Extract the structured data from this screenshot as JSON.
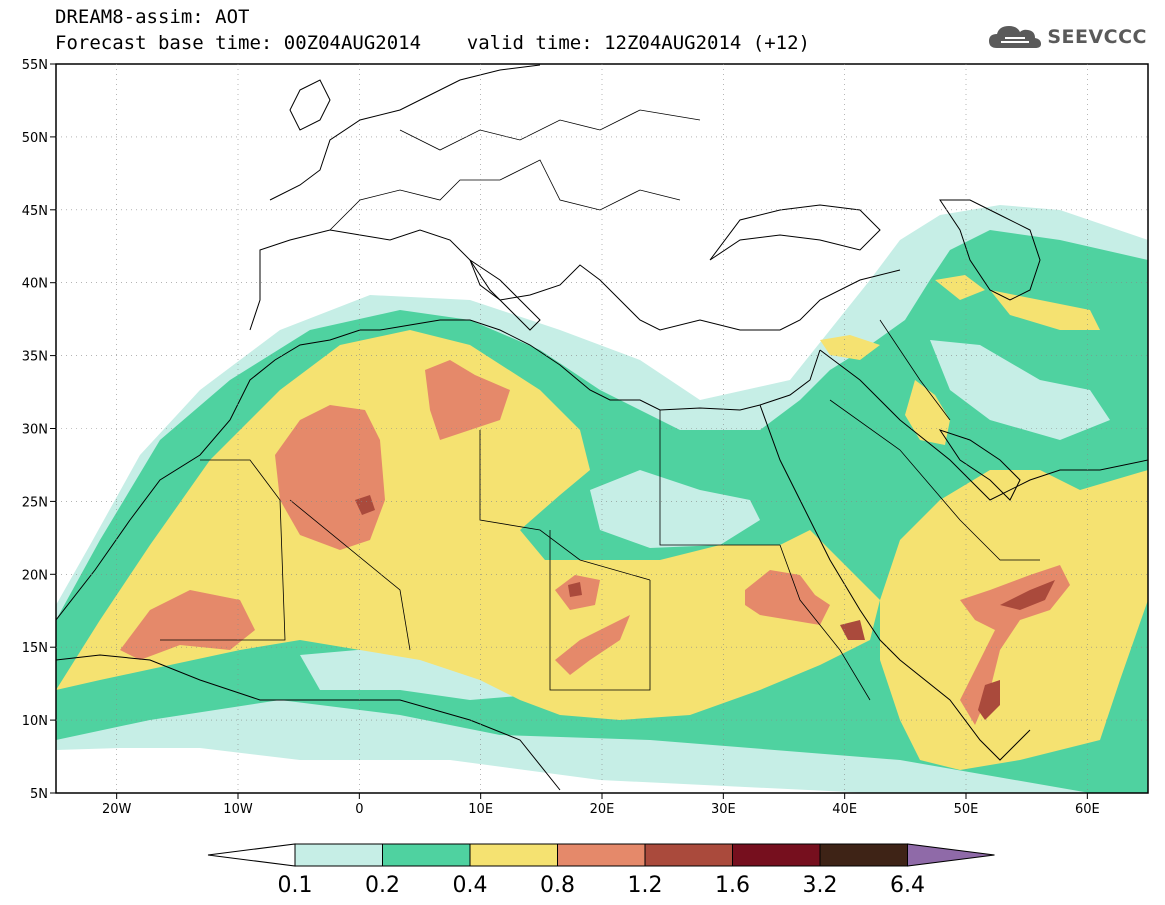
{
  "title": {
    "line1": "DREAM8-assim: AOT",
    "line2": "Forecast base time: 00Z04AUG2014    valid time: 12Z04AUG2014 (+12)"
  },
  "logo": {
    "icon": "cloud-icon",
    "text": "SEEVCCC"
  },
  "map": {
    "lon_range": [
      -25,
      65
    ],
    "lat_range": [
      5,
      55
    ],
    "lat_ticks": [
      {
        "value": 55,
        "label": "55N"
      },
      {
        "value": 50,
        "label": "50N"
      },
      {
        "value": 45,
        "label": "45N"
      },
      {
        "value": 40,
        "label": "40N"
      },
      {
        "value": 35,
        "label": "35N"
      },
      {
        "value": 30,
        "label": "30N"
      },
      {
        "value": 25,
        "label": "25N"
      },
      {
        "value": 20,
        "label": "20N"
      },
      {
        "value": 15,
        "label": "15N"
      },
      {
        "value": 10,
        "label": "10N"
      },
      {
        "value": 5,
        "label": "5N"
      }
    ],
    "lon_ticks": [
      {
        "value": -20,
        "label": "20W"
      },
      {
        "value": -10,
        "label": "10W"
      },
      {
        "value": 0,
        "label": "0"
      },
      {
        "value": 10,
        "label": "10E"
      },
      {
        "value": 20,
        "label": "20E"
      },
      {
        "value": 30,
        "label": "30E"
      },
      {
        "value": 40,
        "label": "40E"
      },
      {
        "value": 50,
        "label": "50E"
      },
      {
        "value": 60,
        "label": "60E"
      }
    ]
  },
  "colorbar": {
    "under_color": "#ffffff",
    "over_color": "#8f6aa8",
    "bins": [
      {
        "color": "#c6eee6"
      },
      {
        "color": "#4fd2a0"
      },
      {
        "color": "#f5e271"
      },
      {
        "color": "#e5896a"
      },
      {
        "color": "#aa4a3c"
      },
      {
        "color": "#760f1e"
      },
      {
        "color": "#3e2316"
      }
    ],
    "labels": [
      "0.1",
      "0.2",
      "0.4",
      "0.8",
      "1.2",
      "1.6",
      "3.2",
      "6.4"
    ]
  },
  "colors": {
    "aot_0_1": "#c6eee6",
    "aot_0_2": "#4fd2a0",
    "aot_0_4": "#f5e271",
    "aot_0_8": "#e5896a",
    "aot_1_2": "#aa4a3c",
    "aot_1_6": "#760f1e",
    "aot_3_2": "#3e2316"
  }
}
